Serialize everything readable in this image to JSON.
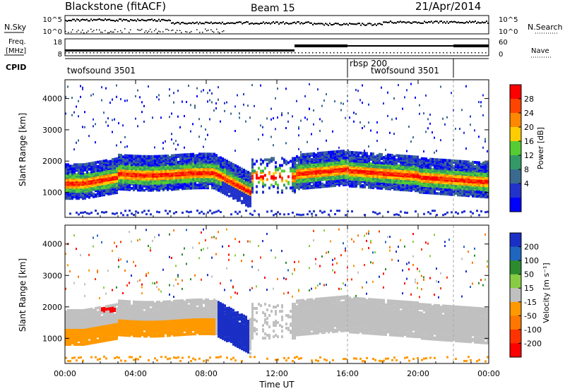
{
  "header": {
    "radar": "Blackstone (fitACF)",
    "beam": "Beam 15",
    "date": "21/Apr/2014"
  },
  "top_panels": {
    "nsky_label": "N.Sky",
    "nsearch_label": "N.Search",
    "freq_label_line1": "Freq.",
    "freq_label_line2": "[MHz]",
    "nave_label": "Nave",
    "cpid_label": "CPID",
    "noise_left_ticks": [
      "10^5",
      "10^0"
    ],
    "noise_right_ticks": [
      "10^5",
      "10^0"
    ],
    "freq_left_ticks": [
      "18",
      "8"
    ],
    "freq_right_ticks": [
      "60",
      "0"
    ]
  },
  "cpid_segments": [
    {
      "label": "twofsound 3501",
      "start_hour": 0
    },
    {
      "label": "rbsp 200",
      "start_hour": 16
    },
    {
      "label": "twofsound 3501",
      "start_hour": 17.2
    }
  ],
  "chart_data": [
    {
      "type": "heatmap",
      "name": "power-panel",
      "ylabel": "Slant Range [km]",
      "xlabel": "",
      "ylim": [
        200,
        4600
      ],
      "xlim_hours": [
        0,
        24
      ],
      "yticks": [
        1000,
        2000,
        3000,
        4000
      ],
      "colorbar": {
        "label": "Power [dB]",
        "ticks": [
          28,
          24,
          20,
          16,
          12,
          8,
          4
        ],
        "colors": [
          "#ff0000",
          "#ff4400",
          "#ff8800",
          "#ffcc00",
          "#55cc33",
          "#339966",
          "#3a6a8f",
          "#2233cc",
          "#0000ff"
        ]
      }
    },
    {
      "type": "heatmap",
      "name": "velocity-panel",
      "ylabel": "Slant Range [km]",
      "xlabel": "Time UT",
      "ylim": [
        200,
        4600
      ],
      "xlim_hours": [
        0,
        24
      ],
      "yticks": [
        1000,
        2000,
        3000,
        4000
      ],
      "xticks": [
        "00:00",
        "04:00",
        "08:00",
        "12:00",
        "16:00",
        "20:00",
        "00:00"
      ],
      "colorbar": {
        "label": "Velocity [m s⁻¹]",
        "ticks": [
          "200",
          "100",
          "50",
          "15",
          "-15",
          "-50",
          "-100",
          "-200"
        ],
        "colors": [
          "#1a2fc6",
          "#1f66c0",
          "#2e8a2e",
          "#88cc44",
          "#c0c0c0",
          "#ff9900",
          "#ff7700",
          "#ff3300",
          "#ff0000"
        ]
      }
    }
  ],
  "colors": {
    "ground": "#c0c0c0",
    "power_band": "#33aa44",
    "power_core": "#ff3300",
    "velocity_neg": "#ff9900",
    "velocity_pos": "#1a2fc6"
  }
}
